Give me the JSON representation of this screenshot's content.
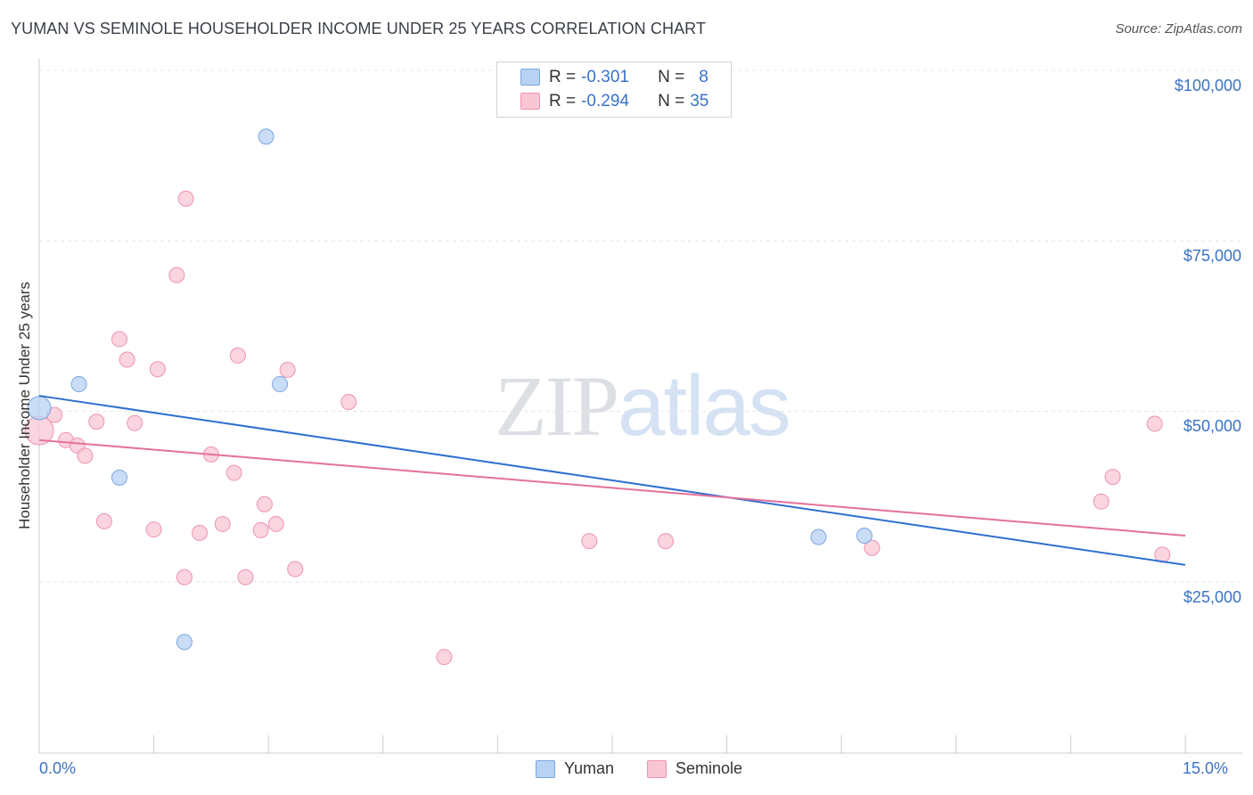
{
  "title": "YUMAN VS SEMINOLE HOUSEHOLDER INCOME UNDER 25 YEARS CORRELATION CHART",
  "source": "Source: ZipAtlas.com",
  "watermark": {
    "zip": "ZIP",
    "atlas": "atlas"
  },
  "colors": {
    "yuman_fill": "#b8d2f3",
    "yuman_stroke": "#7aa6e0",
    "yuman_line": "#2f6fd0",
    "seminole_fill": "#f8c6d4",
    "seminole_stroke": "#ec94ae",
    "seminole_line": "#e4719a",
    "tick_text": "#3a72c6",
    "grid": "#e2e5e9"
  },
  "legend": {
    "rows": [
      {
        "r_label": "R = ",
        "r_value": "-0.301",
        "n_label": "N = ",
        "n_value": "8"
      },
      {
        "r_label": "R = ",
        "r_value": "-0.294",
        "n_label": "N = ",
        "n_value": "35"
      }
    ]
  },
  "chart_data": {
    "type": "scatter",
    "title": "YUMAN VS SEMINOLE HOUSEHOLDER INCOME UNDER 25 YEARS CORRELATION CHART",
    "xlabel": "",
    "ylabel": "Householder Income Under 25 years",
    "xlim": [
      0,
      15
    ],
    "ylim": [
      0,
      105000
    ],
    "x_tick_labels": [
      "0.0%",
      "15.0%"
    ],
    "y_ticks": [
      25000,
      50000,
      75000,
      100000
    ],
    "y_tick_labels": [
      "$25,000",
      "$50,000",
      "$75,000",
      "$100,000"
    ],
    "series": [
      {
        "name": "Yuman",
        "r": -0.301,
        "n": 8,
        "points": [
          [
            0.0,
            50500
          ],
          [
            0.52,
            54000
          ],
          [
            1.05,
            40300
          ],
          [
            1.9,
            16200
          ],
          [
            2.97,
            90300
          ],
          [
            3.15,
            54000
          ],
          [
            10.8,
            31800
          ],
          [
            10.2,
            31600
          ]
        ],
        "trend": [
          [
            0.0,
            52300
          ],
          [
            15.0,
            27500
          ]
        ]
      },
      {
        "name": "Seminole",
        "r": -0.294,
        "n": 35,
        "points": [
          [
            0.0,
            47200
          ],
          [
            0.2,
            49500
          ],
          [
            0.35,
            45800
          ],
          [
            0.5,
            45000
          ],
          [
            0.6,
            43500
          ],
          [
            0.75,
            48500
          ],
          [
            0.85,
            33900
          ],
          [
            1.05,
            60600
          ],
          [
            1.15,
            57600
          ],
          [
            1.25,
            48300
          ],
          [
            1.5,
            32700
          ],
          [
            1.55,
            56200
          ],
          [
            1.8,
            70000
          ],
          [
            1.9,
            25700
          ],
          [
            1.92,
            81200
          ],
          [
            2.1,
            32200
          ],
          [
            2.25,
            43700
          ],
          [
            2.4,
            33500
          ],
          [
            2.55,
            41000
          ],
          [
            2.6,
            58200
          ],
          [
            2.7,
            25700
          ],
          [
            2.9,
            32600
          ],
          [
            2.95,
            36400
          ],
          [
            3.1,
            33500
          ],
          [
            3.25,
            56100
          ],
          [
            3.35,
            26900
          ],
          [
            4.05,
            51400
          ],
          [
            5.3,
            14000
          ],
          [
            7.2,
            31000
          ],
          [
            8.2,
            31000
          ],
          [
            10.9,
            30000
          ],
          [
            13.9,
            36800
          ],
          [
            14.05,
            40400
          ],
          [
            14.6,
            48200
          ],
          [
            14.7,
            29000
          ]
        ],
        "trend": [
          [
            0.0,
            45800
          ],
          [
            15.0,
            31800
          ]
        ]
      }
    ],
    "legend": [
      "Yuman",
      "Seminole"
    ]
  }
}
